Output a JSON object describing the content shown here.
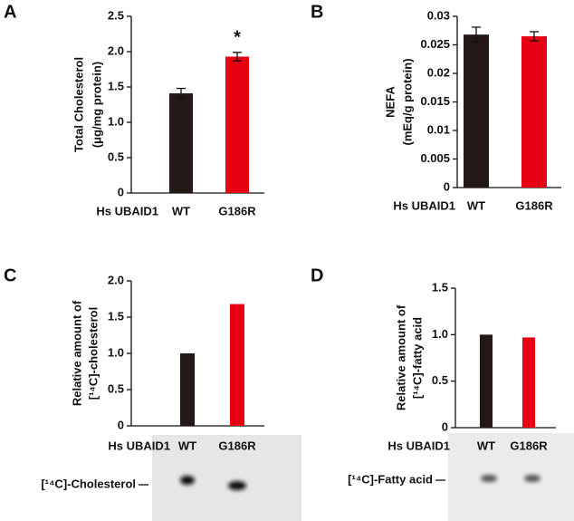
{
  "chart_data": [
    {
      "type": "bar",
      "panel": "A",
      "ylabel": [
        "Total Cholesterol",
        "(μg/mg protein)"
      ],
      "xlabel": "Hs UBAID1",
      "categories": [
        "WT",
        "G186R"
      ],
      "values": [
        1.41,
        1.93
      ],
      "errors": [
        0.07,
        0.06
      ],
      "colors": [
        "#231815",
        "#e60012"
      ],
      "annotation": "*",
      "ylim": [
        0,
        2.5
      ],
      "yticks": [
        0,
        0.5,
        {
          "value": 1,
          "label": "1.0"
        },
        1.5,
        {
          "value": 2,
          "label": "2.0"
        },
        2.5
      ]
    },
    {
      "type": "bar",
      "panel": "B",
      "ylabel": [
        "NEFA",
        "(mEq/g protein)"
      ],
      "xlabel": "Hs UBAID1",
      "categories": [
        "WT",
        "G186R"
      ],
      "values": [
        0.0268,
        0.0265
      ],
      "errors": [
        0.0013,
        0.0008
      ],
      "colors": [
        "#231815",
        "#e60012"
      ],
      "ylim": [
        0,
        0.03
      ],
      "yticks": [
        0,
        0.005,
        0.01,
        0.015,
        0.02,
        0.025,
        0.03
      ]
    },
    {
      "type": "bar",
      "panel": "C",
      "ylabel": [
        "Relative amount of",
        "[¹⁴C]-cholesterol"
      ],
      "xlabel": "Hs UBAID1",
      "categories": [
        "WT",
        "G186R"
      ],
      "values": [
        1.0,
        1.68
      ],
      "colors": [
        "#231815",
        "#e60012"
      ],
      "gel_label": "[¹⁴C]-Cholesterol",
      "ylim": [
        0,
        2
      ],
      "yticks": [
        0,
        0.5,
        {
          "value": 1,
          "label": "1.0"
        },
        1.5,
        {
          "value": 2,
          "label": "2.0"
        }
      ]
    },
    {
      "type": "bar",
      "panel": "D",
      "ylabel": [
        "Relative amount of",
        "[¹⁴C]-fatty acid"
      ],
      "xlabel": "Hs UBAID1",
      "categories": [
        "WT",
        "G186R"
      ],
      "values": [
        1.0,
        0.97
      ],
      "colors": [
        "#231815",
        "#e60012"
      ],
      "gel_label": "[¹⁴C]-Fatty acid",
      "ylim": [
        0,
        1.5
      ],
      "yticks": [
        0,
        0.5,
        {
          "value": 1,
          "label": "1.0"
        },
        1.5
      ]
    }
  ]
}
